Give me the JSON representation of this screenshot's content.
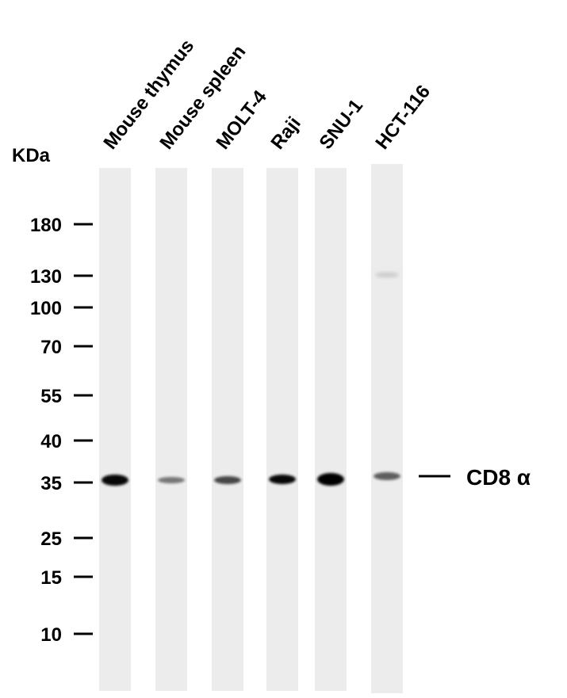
{
  "unit_label": "KDa",
  "lanes": [
    "Mouse thymus",
    "Mouse spleen",
    "MOLT-4",
    "Raji",
    "SNU-1",
    "HCT-116"
  ],
  "markers": [
    "180",
    "130",
    "100",
    "70",
    "55",
    "40",
    "35",
    "25",
    "15",
    "10"
  ],
  "band_label": "CD8 α"
}
